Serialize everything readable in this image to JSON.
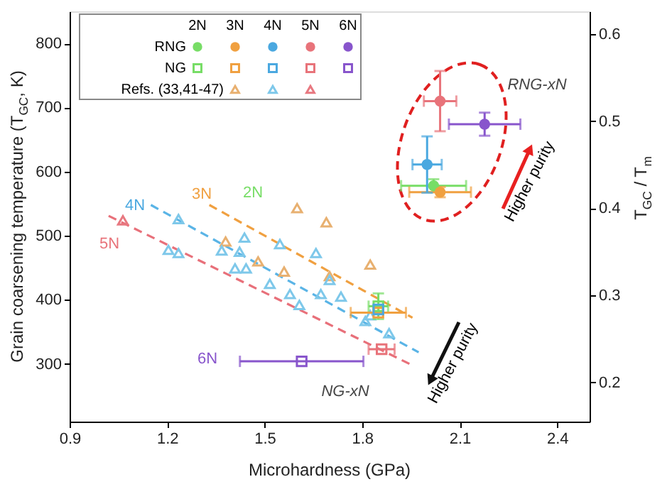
{
  "chart_data": {
    "type": "scatter",
    "xlabel": "Microhardness (GPa)",
    "ylabel": "Grain coarsening temperature (T$_{GC}$, K)",
    "y2label": "T$_{GC}$ / T$_{m}$",
    "xlim": [
      0.9,
      2.5
    ],
    "xticks": [
      0.9,
      1.2,
      1.5,
      1.8,
      2.1,
      2.4
    ],
    "ylim": [
      210,
      850
    ],
    "yticks": [
      300,
      400,
      500,
      600,
      700,
      800
    ],
    "y2lim": [
      0.155,
      0.626
    ],
    "y2ticks": [
      0.2,
      0.3,
      0.4,
      0.5,
      0.6
    ],
    "grid": false,
    "legend": "top left",
    "series": [
      {
        "type": "line",
        "line_style": "dashed",
        "color": "#f0a040",
        "x": [
          1.33,
          1.955
        ],
        "values": [
          548,
          372
        ]
      },
      {
        "type": "line",
        "line_style": "dashed",
        "color": "#5ab4e6",
        "x": [
          1.15,
          1.974
        ],
        "values": [
          548,
          318
        ]
      },
      {
        "type": "line",
        "line_style": "dashed",
        "color": "#e8707a",
        "x": [
          1.02,
          1.95
        ],
        "values": [
          531,
          299
        ]
      },
      {
        "name": "Refs. (33,41-47)",
        "marker": "triangle",
        "x": [
          1.6,
          1.69,
          1.38,
          1.48,
          1.56,
          1.825,
          1.7,
          1.235,
          1.204,
          1.235,
          1.368,
          1.438,
          1.423,
          1.409,
          1.443,
          1.547,
          1.516,
          1.578,
          1.607,
          1.658,
          1.673,
          1.7,
          1.735,
          1.81,
          1.825,
          1.883,
          1.064
        ],
        "values": [
          543,
          521,
          491,
          460,
          444,
          455,
          437,
          526,
          478,
          473,
          477,
          497,
          475,
          449,
          449,
          487,
          425,
          409,
          392,
          473,
          409,
          431,
          405,
          367,
          376,
          348,
          524
        ],
        "colors": [
          "#e8b070",
          "#e8b070",
          "#e8b070",
          "#e8b070",
          "#e8b070",
          "#e8b070",
          "#e8b070",
          "#7ec8ea",
          "#7ec8ea",
          "#7ec8ea",
          "#7ec8ea",
          "#7ec8ea",
          "#7ec8ea",
          "#7ec8ea",
          "#7ec8ea",
          "#7ec8ea",
          "#7ec8ea",
          "#7ec8ea",
          "#7ec8ea",
          "#7ec8ea",
          "#7ec8ea",
          "#7ec8ea",
          "#7ec8ea",
          "#7ec8ea",
          "#7ec8ea",
          "#7ec8ea",
          "#e87880"
        ]
      },
      {
        "name": "NG",
        "marker": "square",
        "x": [
          1.85,
          1.85,
          1.85,
          1.86,
          1.614
        ],
        "values": [
          390,
          380,
          385,
          323,
          304
        ],
        "errors": [
          20,
          null,
          null,
          null,
          null
        ],
        "xerrors": [
          0.03,
          0.085,
          null,
          0.04,
          0.19
        ],
        "colors": [
          "#77dd66",
          "#f0a040",
          "#4aa8e0",
          "#e8737a",
          "#8855cc"
        ]
      },
      {
        "name": "RNG",
        "marker": "circle",
        "x": [
          2.02,
          2.04,
          2.0,
          2.04,
          2.177
        ],
        "values": [
          578,
          568,
          611,
          710,
          674
        ],
        "errors": [
          10,
          8,
          44,
          47,
          18
        ],
        "xerrors": [
          0.1,
          0.095,
          0.045,
          0.05,
          0.11
        ],
        "colors": [
          "#77dd66",
          "#f0a040",
          "#4aa8e0",
          "#e8737a",
          "#8855cc"
        ]
      }
    ],
    "annotations": [
      "2N",
      "3N",
      "4N",
      "5N",
      "6N",
      "Higher purity",
      "Higher purity",
      "RNG-xN",
      "NG-xN",
      "4N",
      "3N",
      "2N",
      "5N",
      "6N"
    ]
  }
}
